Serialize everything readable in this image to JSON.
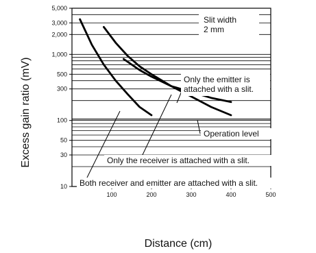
{
  "chart_data": {
    "type": "line",
    "xlabel": "Distance (cm)",
    "ylabel": "Excess gain ratio  (mV)",
    "xlim": [
      0,
      500
    ],
    "ylim": [
      10,
      5000
    ],
    "yscale": "log",
    "x_ticks": [
      100,
      200,
      300,
      400,
      500
    ],
    "y_ticks": [
      {
        "value": 10,
        "label": "10"
      },
      {
        "value": 30,
        "label": "30"
      },
      {
        "value": 50,
        "label": "50"
      },
      {
        "value": 100,
        "label": "100"
      },
      {
        "value": 300,
        "label": "300"
      },
      {
        "value": 500,
        "label": "500"
      },
      {
        "value": 1000,
        "label": "1,000"
      },
      {
        "value": 2000,
        "label": "2,000"
      },
      {
        "value": 3000,
        "label": "3,000"
      },
      {
        "value": 5000,
        "label": "5,000"
      }
    ],
    "grid": "horizontal",
    "operation_level": 1.0,
    "series": [
      {
        "x": [
          20,
          50,
          80,
          110,
          140,
          170,
          200
        ],
        "values": [
          3400,
          1400,
          700,
          400,
          250,
          160,
          120
        ]
      },
      {
        "x": [
          80,
          110,
          140,
          170,
          200,
          250,
          300,
          350,
          400
        ],
        "values": [
          2600,
          1500,
          950,
          660,
          500,
          330,
          230,
          160,
          120
        ]
      },
      {
        "x": [
          130,
          170,
          200,
          250,
          300,
          350,
          400
        ],
        "values": [
          850,
          580,
          460,
          330,
          270,
          220,
          190
        ]
      }
    ],
    "annotations": {
      "slit_width": [
        "Slit width",
        "2 mm"
      ],
      "emitter": [
        "Only the emitter is",
        "attached with a slit."
      ],
      "operation_level_label": "Operation level",
      "receiver": "Only the receiver is attached with a slit.",
      "both": "Both receiver and emitter are attached with a slit."
    }
  }
}
